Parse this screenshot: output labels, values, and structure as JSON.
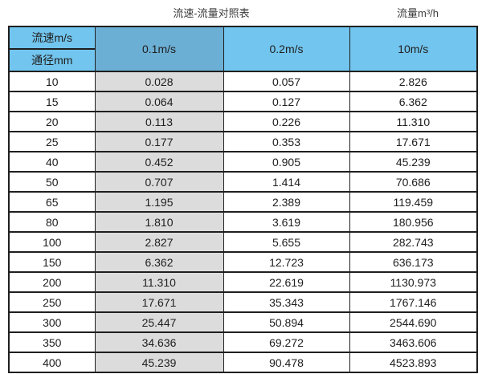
{
  "page": {
    "title_left": "流速-流量对照表",
    "title_right": "流量m³/h"
  },
  "table": {
    "corner": {
      "top": "流速m/s",
      "bottom": "通径mm"
    },
    "velocity_headers": [
      "0.1m/s",
      "0.2m/s",
      "10m/s"
    ],
    "rows": [
      {
        "dn": "10",
        "values": [
          "0.028",
          "0.057",
          "2.826"
        ]
      },
      {
        "dn": "15",
        "values": [
          "0.064",
          "0.127",
          "6.362"
        ]
      },
      {
        "dn": "20",
        "values": [
          "0.113",
          "0.226",
          "11.310"
        ]
      },
      {
        "dn": "25",
        "values": [
          "0.177",
          "0.353",
          "17.671"
        ]
      },
      {
        "dn": "40",
        "values": [
          "0.452",
          "0.905",
          "45.239"
        ]
      },
      {
        "dn": "50",
        "values": [
          "0.707",
          "1.414",
          "70.686"
        ]
      },
      {
        "dn": "65",
        "values": [
          "1.195",
          "2.389",
          "119.459"
        ]
      },
      {
        "dn": "80",
        "values": [
          "1.810",
          "3.619",
          "180.956"
        ]
      },
      {
        "dn": "100",
        "values": [
          "2.827",
          "5.655",
          "282.743"
        ]
      },
      {
        "dn": "150",
        "values": [
          "6.362",
          "12.723",
          "636.173"
        ]
      },
      {
        "dn": "200",
        "values": [
          "11.310",
          "22.619",
          "1130.973"
        ]
      },
      {
        "dn": "250",
        "values": [
          "17.671",
          "35.343",
          "1767.146"
        ]
      },
      {
        "dn": "300",
        "values": [
          "25.447",
          "50.894",
          "2544.690"
        ]
      },
      {
        "dn": "350",
        "values": [
          "34.636",
          "69.272",
          "3463.606"
        ]
      },
      {
        "dn": "400",
        "values": [
          "45.239",
          "90.478",
          "4523.893"
        ]
      }
    ]
  },
  "colors": {
    "header_blue": "#72c5ee",
    "header_blue_dark": "#6cafd4",
    "column_grey": "#dcdcdc",
    "border": "#1f1f1f"
  }
}
